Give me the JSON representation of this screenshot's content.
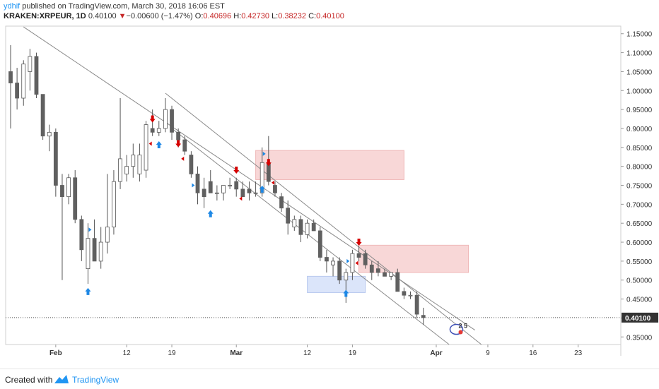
{
  "header": {
    "author": "ydhif",
    "published": " published on TradingView.com, March 30, 2018 16:06 EST",
    "symbol": "KRAKEN:XRPEUR, 1D",
    "last": "0.40100",
    "arrow": "▼",
    "change": "−0.00600 (−1.47%)",
    "o_label": "O:",
    "o_val": "0.40696",
    "h_label": "H:",
    "h_val": "0.42730",
    "l_label": "L:",
    "l_val": "0.38232",
    "c_label": "C:",
    "c_val": "0.40100"
  },
  "footer": {
    "created": "Created with",
    "brand": "TradingView"
  },
  "colors": {
    "up_body": "#ffffff",
    "down_body": "#606060",
    "wick": "#555555",
    "sell_arrow": "#d50000",
    "buy_arrow": "#1e88e5",
    "supply_zone": "#f8d7d7",
    "demand_zone": "#dbe5fa",
    "channel_line": "#8a8a8a",
    "price_tag": "#333333"
  },
  "chart_data": {
    "type": "candlestick",
    "ylim": [
      0.33,
      1.17
    ],
    "y_ticks": [
      "1.15000",
      "1.10000",
      "1.05000",
      "1.00000",
      "0.95000",
      "0.90000",
      "0.85000",
      "0.80000",
      "0.75000",
      "0.70000",
      "0.65000",
      "0.60000",
      "0.55000",
      "0.50000",
      "0.45000",
      "0.40000",
      "0.35000"
    ],
    "y_tick_values": [
      1.15,
      1.1,
      1.05,
      1.0,
      0.95,
      0.9,
      0.85,
      0.8,
      0.75,
      0.7,
      0.65,
      0.6,
      0.55,
      0.5,
      0.45,
      0.4,
      0.35
    ],
    "x_ticks": [
      {
        "label": "Feb",
        "date": "2018-02-01"
      },
      {
        "label": "12",
        "date": "2018-02-12"
      },
      {
        "label": "19",
        "date": "2018-02-19"
      },
      {
        "label": "Mar",
        "date": "2018-03-01"
      },
      {
        "label": "12",
        "date": "2018-03-12"
      },
      {
        "label": "19",
        "date": "2018-03-19"
      },
      {
        "label": "Apr",
        "date": "2018-04-01"
      },
      {
        "label": "9",
        "date": "2018-04-09"
      },
      {
        "label": "16",
        "date": "2018-04-16"
      },
      {
        "label": "23",
        "date": "2018-04-23"
      }
    ],
    "x_range": [
      "2018-01-25",
      "2018-04-26"
    ],
    "candles": [
      {
        "date": "2018-01-25",
        "o": 1.05,
        "h": 1.12,
        "l": 0.9,
        "c": 1.02
      },
      {
        "date": "2018-01-26",
        "o": 1.02,
        "h": 1.06,
        "l": 0.95,
        "c": 0.98
      },
      {
        "date": "2018-01-27",
        "o": 0.98,
        "h": 1.08,
        "l": 0.96,
        "c": 1.07
      },
      {
        "date": "2018-01-28",
        "o": 1.05,
        "h": 1.11,
        "l": 1.0,
        "c": 1.09
      },
      {
        "date": "2018-01-29",
        "o": 1.09,
        "h": 1.1,
        "l": 0.98,
        "c": 0.99
      },
      {
        "date": "2018-01-30",
        "o": 0.99,
        "h": 0.99,
        "l": 0.87,
        "c": 0.88
      },
      {
        "date": "2018-01-31",
        "o": 0.88,
        "h": 0.91,
        "l": 0.84,
        "c": 0.89
      },
      {
        "date": "2018-02-01",
        "o": 0.89,
        "h": 0.9,
        "l": 0.72,
        "c": 0.75
      },
      {
        "date": "2018-02-02",
        "o": 0.75,
        "h": 0.78,
        "l": 0.5,
        "c": 0.72
      },
      {
        "date": "2018-02-03",
        "o": 0.72,
        "h": 0.78,
        "l": 0.7,
        "c": 0.77
      },
      {
        "date": "2018-02-04",
        "o": 0.77,
        "h": 0.79,
        "l": 0.65,
        "c": 0.66
      },
      {
        "date": "2018-02-05",
        "o": 0.66,
        "h": 0.67,
        "l": 0.55,
        "c": 0.58
      },
      {
        "date": "2018-02-06",
        "o": 0.53,
        "h": 0.65,
        "l": 0.49,
        "c": 0.61
      },
      {
        "date": "2018-02-07",
        "o": 0.61,
        "h": 0.66,
        "l": 0.55,
        "c": 0.55
      },
      {
        "date": "2018-02-08",
        "o": 0.55,
        "h": 0.64,
        "l": 0.53,
        "c": 0.6
      },
      {
        "date": "2018-02-09",
        "o": 0.6,
        "h": 0.78,
        "l": 0.57,
        "c": 0.64
      },
      {
        "date": "2018-02-10",
        "o": 0.64,
        "h": 0.79,
        "l": 0.62,
        "c": 0.76
      },
      {
        "date": "2018-02-11",
        "o": 0.76,
        "h": 0.98,
        "l": 0.74,
        "c": 0.82
      },
      {
        "date": "2018-02-12",
        "o": 0.78,
        "h": 0.83,
        "l": 0.76,
        "c": 0.8
      },
      {
        "date": "2018-02-13",
        "o": 0.8,
        "h": 0.86,
        "l": 0.77,
        "c": 0.83
      },
      {
        "date": "2018-02-14",
        "o": 0.78,
        "h": 0.86,
        "l": 0.76,
        "c": 0.83
      },
      {
        "date": "2018-02-15",
        "o": 0.79,
        "h": 0.92,
        "l": 0.77,
        "c": 0.91
      },
      {
        "date": "2018-02-16",
        "o": 0.9,
        "h": 0.95,
        "l": 0.88,
        "c": 0.89
      },
      {
        "date": "2018-02-17",
        "o": 0.89,
        "h": 0.92,
        "l": 0.88,
        "c": 0.9
      },
      {
        "date": "2018-02-18",
        "o": 0.9,
        "h": 0.98,
        "l": 0.89,
        "c": 0.95
      },
      {
        "date": "2018-02-19",
        "o": 0.95,
        "h": 0.96,
        "l": 0.87,
        "c": 0.89
      },
      {
        "date": "2018-02-20",
        "o": 0.89,
        "h": 0.9,
        "l": 0.85,
        "c": 0.87
      },
      {
        "date": "2018-02-21",
        "o": 0.87,
        "h": 0.88,
        "l": 0.83,
        "c": 0.84
      },
      {
        "date": "2018-02-22",
        "o": 0.83,
        "h": 0.84,
        "l": 0.77,
        "c": 0.78
      },
      {
        "date": "2018-02-23",
        "o": 0.78,
        "h": 0.8,
        "l": 0.7,
        "c": 0.73
      },
      {
        "date": "2018-02-24",
        "o": 0.74,
        "h": 0.77,
        "l": 0.69,
        "c": 0.72
      },
      {
        "date": "2018-02-25",
        "o": 0.76,
        "h": 0.79,
        "l": 0.73,
        "c": 0.73
      },
      {
        "date": "2018-02-26",
        "o": 0.73,
        "h": 0.75,
        "l": 0.71,
        "c": 0.73
      },
      {
        "date": "2018-02-27",
        "o": 0.73,
        "h": 0.75,
        "l": 0.71,
        "c": 0.75
      },
      {
        "date": "2018-02-28",
        "o": 0.75,
        "h": 0.77,
        "l": 0.74,
        "c": 0.75
      },
      {
        "date": "2018-03-01",
        "o": 0.76,
        "h": 0.77,
        "l": 0.72,
        "c": 0.74
      },
      {
        "date": "2018-03-02",
        "o": 0.74,
        "h": 0.76,
        "l": 0.72,
        "c": 0.72
      },
      {
        "date": "2018-03-03",
        "o": 0.74,
        "h": 0.76,
        "l": 0.71,
        "c": 0.73
      },
      {
        "date": "2018-03-04",
        "o": 0.73,
        "h": 0.76,
        "l": 0.72,
        "c": 0.73
      },
      {
        "date": "2018-03-05",
        "o": 0.73,
        "h": 0.85,
        "l": 0.72,
        "c": 0.81
      },
      {
        "date": "2018-03-06",
        "o": 0.81,
        "h": 0.88,
        "l": 0.75,
        "c": 0.76
      },
      {
        "date": "2018-03-07",
        "o": 0.75,
        "h": 0.76,
        "l": 0.72,
        "c": 0.73
      },
      {
        "date": "2018-03-08",
        "o": 0.72,
        "h": 0.73,
        "l": 0.68,
        "c": 0.69
      },
      {
        "date": "2018-03-09",
        "o": 0.69,
        "h": 0.71,
        "l": 0.62,
        "c": 0.65
      },
      {
        "date": "2018-03-10",
        "o": 0.64,
        "h": 0.67,
        "l": 0.63,
        "c": 0.66
      },
      {
        "date": "2018-03-11",
        "o": 0.66,
        "h": 0.67,
        "l": 0.6,
        "c": 0.62
      },
      {
        "date": "2018-03-12",
        "o": 0.62,
        "h": 0.66,
        "l": 0.61,
        "c": 0.65
      },
      {
        "date": "2018-03-13",
        "o": 0.65,
        "h": 0.66,
        "l": 0.63,
        "c": 0.63
      },
      {
        "date": "2018-03-14",
        "o": 0.63,
        "h": 0.64,
        "l": 0.55,
        "c": 0.56
      },
      {
        "date": "2018-03-15",
        "o": 0.56,
        "h": 0.58,
        "l": 0.52,
        "c": 0.55
      },
      {
        "date": "2018-03-16",
        "o": 0.54,
        "h": 0.56,
        "l": 0.51,
        "c": 0.55
      },
      {
        "date": "2018-03-17",
        "o": 0.55,
        "h": 0.56,
        "l": 0.49,
        "c": 0.5
      },
      {
        "date": "2018-03-18",
        "o": 0.5,
        "h": 0.53,
        "l": 0.44,
        "c": 0.52
      },
      {
        "date": "2018-03-19",
        "o": 0.52,
        "h": 0.58,
        "l": 0.5,
        "c": 0.57
      },
      {
        "date": "2018-03-20",
        "o": 0.57,
        "h": 0.59,
        "l": 0.55,
        "c": 0.56
      },
      {
        "date": "2018-03-21",
        "o": 0.57,
        "h": 0.58,
        "l": 0.53,
        "c": 0.54
      },
      {
        "date": "2018-03-22",
        "o": 0.54,
        "h": 0.55,
        "l": 0.5,
        "c": 0.52
      },
      {
        "date": "2018-03-23",
        "o": 0.53,
        "h": 0.55,
        "l": 0.51,
        "c": 0.52
      },
      {
        "date": "2018-03-24",
        "o": 0.52,
        "h": 0.53,
        "l": 0.51,
        "c": 0.51
      },
      {
        "date": "2018-03-25",
        "o": 0.51,
        "h": 0.52,
        "l": 0.5,
        "c": 0.52
      },
      {
        "date": "2018-03-26",
        "o": 0.52,
        "h": 0.53,
        "l": 0.47,
        "c": 0.47
      },
      {
        "date": "2018-03-27",
        "o": 0.47,
        "h": 0.48,
        "l": 0.45,
        "c": 0.46
      },
      {
        "date": "2018-03-28",
        "o": 0.46,
        "h": 0.47,
        "l": 0.45,
        "c": 0.46
      },
      {
        "date": "2018-03-29",
        "o": 0.46,
        "h": 0.47,
        "l": 0.4,
        "c": 0.41
      },
      {
        "date": "2018-03-30",
        "o": 0.407,
        "h": 0.427,
        "l": 0.382,
        "c": 0.401
      }
    ],
    "zones": [
      {
        "kind": "supply",
        "from": "2018-03-04",
        "to": "2018-03-27",
        "top": 0.842,
        "bottom": 0.765
      },
      {
        "kind": "supply",
        "from": "2018-03-20",
        "to": "2018-04-06",
        "top": 0.592,
        "bottom": 0.52
      },
      {
        "kind": "demand",
        "from": "2018-03-12",
        "to": "2018-03-21",
        "top": 0.51,
        "bottom": 0.467
      }
    ],
    "trendlines": [
      {
        "from": {
          "date": "2018-01-27",
          "y": 1.168
        },
        "to": {
          "date": "2018-04-07",
          "y": 0.368
        }
      },
      {
        "from": {
          "date": "2018-02-19",
          "y": 0.9
        },
        "to": {
          "date": "2018-04-03",
          "y": 0.33
        }
      },
      {
        "from": {
          "date": "2018-02-18",
          "y": 0.993
        },
        "to": {
          "date": "2018-04-08",
          "y": 0.33
        }
      }
    ],
    "signals": [
      {
        "type": "sell",
        "date": "2018-02-16",
        "y": 0.925
      },
      {
        "type": "sell",
        "date": "2018-02-20",
        "y": 0.86
      },
      {
        "type": "sell",
        "date": "2018-03-01",
        "y": 0.79
      },
      {
        "type": "sell",
        "date": "2018-03-06",
        "y": 0.81
      },
      {
        "type": "sell",
        "date": "2018-03-20",
        "y": 0.6
      },
      {
        "type": "buy",
        "date": "2018-02-06",
        "y": 0.47
      },
      {
        "type": "buy",
        "date": "2018-02-17",
        "y": 0.857
      },
      {
        "type": "buy",
        "date": "2018-02-25",
        "y": 0.675
      },
      {
        "type": "buy",
        "date": "2018-03-05",
        "y": 0.74
      },
      {
        "type": "buy",
        "date": "2018-03-18",
        "y": 0.465
      },
      {
        "type": "flag_left_red",
        "date": "2018-02-16",
        "y": 0.86
      },
      {
        "type": "flag_left_red",
        "date": "2018-02-21",
        "y": 0.82
      },
      {
        "type": "flag_left_red",
        "date": "2018-03-02",
        "y": 0.715
      },
      {
        "type": "flag_left_red",
        "date": "2018-03-07",
        "y": 0.757
      },
      {
        "type": "flag_left_red",
        "date": "2018-03-20",
        "y": 0.545
      },
      {
        "type": "flag_right_blue",
        "date": "2018-02-06",
        "y": 0.633
      },
      {
        "type": "flag_right_blue",
        "date": "2018-02-22",
        "y": 0.75
      },
      {
        "type": "flag_right_blue",
        "date": "2018-03-05",
        "y": 0.833
      },
      {
        "type": "flag_right_blue",
        "date": "2018-03-18",
        "y": 0.55
      }
    ],
    "last_price": 0.401,
    "last_price_label": "0.40100",
    "event_badge": {
      "date": "2018-04-05",
      "text": "2 5"
    }
  }
}
